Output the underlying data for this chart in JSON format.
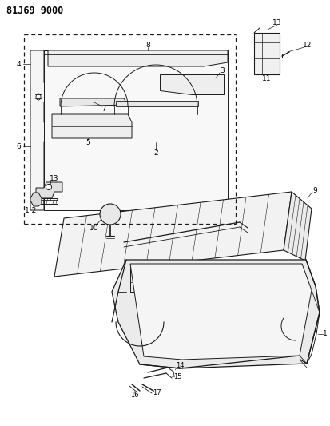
{
  "title": "81J69 9000",
  "bg_color": "#ffffff",
  "line_color": "#1a1a1a",
  "title_fontsize": 8.5,
  "label_fontsize": 6.5,
  "figsize": [
    4.14,
    5.33
  ],
  "dpi": 100
}
